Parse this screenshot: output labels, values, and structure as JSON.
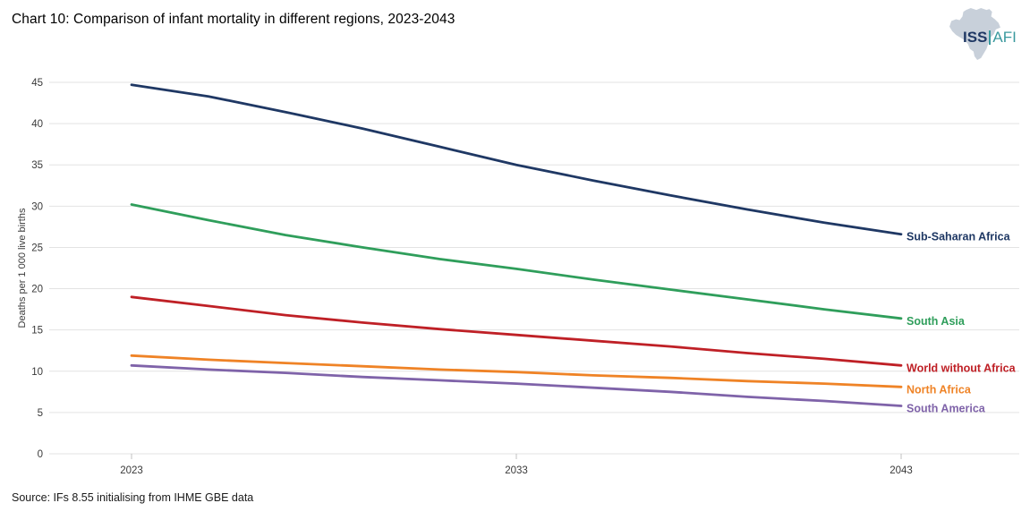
{
  "header": {
    "title": "Chart 10: Comparison of infant mortality in different regions, 2023-2043",
    "logo": {
      "iss": "ISS",
      "afi": "AFI"
    }
  },
  "footer": {
    "source": "Source: IFs 8.55 initialising from IHME GBE data"
  },
  "colors": {
    "gridline": "#e3e3e3",
    "tick_mark": "#c0c0c0",
    "tick_text": "#3a3a3a",
    "axis_title_text": "#3a3a3a",
    "logo_africa_fill": "#c8d0da",
    "logo_navy": "#1f3864",
    "logo_teal": "#3a999e"
  },
  "chart_data": {
    "type": "line",
    "title": "Chart 10: Comparison of infant mortality in different regions, 2023-2043",
    "xlabel": "",
    "ylabel": "Deaths per 1 000 live births",
    "xlim": [
      2023,
      2043
    ],
    "ylim": [
      0,
      45
    ],
    "grid": true,
    "legend_position": "end-of-line-labels",
    "yticks": [
      0,
      5,
      10,
      15,
      20,
      25,
      30,
      35,
      40,
      45
    ],
    "xticks": [
      2023,
      2033,
      2043
    ],
    "x": [
      2023,
      2025,
      2027,
      2029,
      2031,
      2033,
      2035,
      2037,
      2039,
      2041,
      2043
    ],
    "series": [
      {
        "name": "Sub-Saharan Africa",
        "color": "#1f3864",
        "values": [
          44.7,
          43.3,
          41.4,
          39.4,
          37.2,
          35.0,
          33.1,
          31.3,
          29.6,
          28.0,
          26.6
        ]
      },
      {
        "name": "South Asia",
        "color": "#2f9e5b",
        "values": [
          30.2,
          28.3,
          26.5,
          25.0,
          23.6,
          22.4,
          21.1,
          19.9,
          18.7,
          17.5,
          16.4
        ]
      },
      {
        "name": "World without Africa",
        "color": "#bf2026",
        "values": [
          19.0,
          17.9,
          16.8,
          15.9,
          15.1,
          14.4,
          13.7,
          13.0,
          12.2,
          11.5,
          10.7
        ]
      },
      {
        "name": "North Africa",
        "color": "#ef8326",
        "values": [
          11.9,
          11.4,
          11.0,
          10.6,
          10.2,
          9.9,
          9.5,
          9.2,
          8.8,
          8.5,
          8.1
        ]
      },
      {
        "name": "South America",
        "color": "#7f63a9",
        "values": [
          10.7,
          10.2,
          9.8,
          9.3,
          8.9,
          8.5,
          8.0,
          7.5,
          6.9,
          6.4,
          5.8
        ]
      }
    ]
  }
}
